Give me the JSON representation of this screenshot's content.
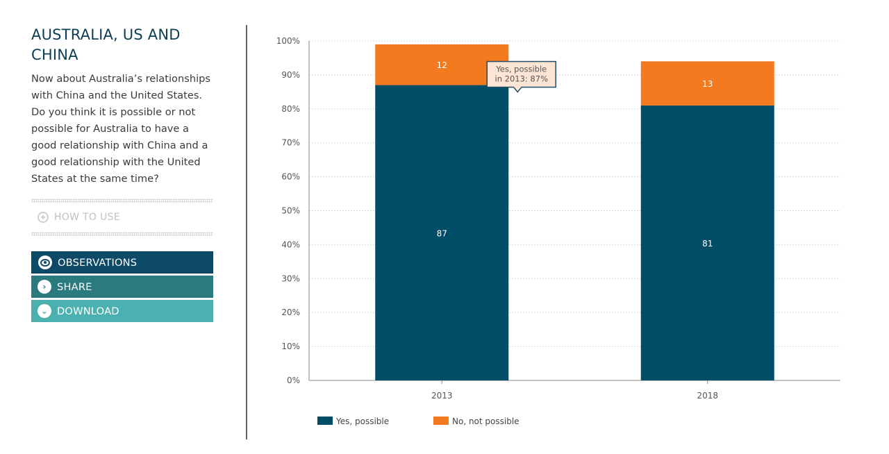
{
  "sidebar": {
    "title_line1": "AUSTRALIA, US AND",
    "title_line2": "CHINA",
    "question": "Now about Australia’s relationships with China and the United States. Do you think it is possible or not possible for Australia to have a good relationship with China and a good relationship with the United States at the same time?",
    "how_to_use": "HOW TO USE",
    "buttons": {
      "observations": "OBSERVATIONS",
      "share": "SHARE",
      "download": "DOWNLOAD"
    },
    "icons": {
      "how_to_use": "plus-circle-icon",
      "observations": "eye-icon",
      "share": "chevron-right-icon",
      "download": "chevron-down-icon"
    }
  },
  "chart_data": {
    "type": "bar",
    "stacked": true,
    "categories": [
      "2013",
      "2018"
    ],
    "series": [
      {
        "name": "Yes, possible",
        "values": [
          87,
          81
        ],
        "color": "#004d68"
      },
      {
        "name": "No, not possible",
        "values": [
          12,
          13
        ],
        "color": "#f47a20"
      }
    ],
    "ylim": [
      0,
      100
    ],
    "yticks": [
      0,
      10,
      20,
      30,
      40,
      50,
      60,
      70,
      80,
      90,
      100
    ],
    "ytick_suffix": "%",
    "grid": true,
    "legend_position": "bottom-left",
    "tooltip": {
      "line1": "Yes, possible",
      "line2": "in 2013: 87%",
      "category_index": 0,
      "series_index": 0
    }
  }
}
